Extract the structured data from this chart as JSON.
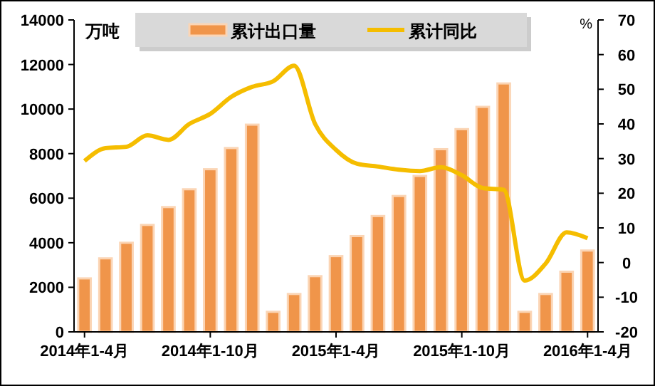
{
  "chart_data": {
    "type": "bar",
    "categories": [
      "2014年1-4月",
      null,
      null,
      null,
      null,
      null,
      "2014年1-10月",
      null,
      null,
      null,
      null,
      null,
      "2015年1-4月",
      null,
      null,
      null,
      null,
      null,
      "2015年1-10月",
      null,
      null,
      null,
      null,
      null,
      "2016年1-4月"
    ],
    "ylabel": "万吨",
    "y2label": "%",
    "ylim": [
      0,
      14000
    ],
    "yticks": [
      0,
      2000,
      4000,
      6000,
      8000,
      10000,
      12000,
      14000
    ],
    "y2lim": [
      -20,
      70
    ],
    "y2ticks": [
      -20,
      -10,
      0,
      10,
      20,
      30,
      40,
      50,
      60,
      70
    ],
    "series": [
      {
        "name": "累计出口量",
        "color": "#f0954a",
        "values": [
          2400,
          3300,
          4000,
          4800,
          5600,
          6400,
          7300,
          8250,
          9300,
          900,
          1700,
          2500,
          3400,
          4300,
          5200,
          6100,
          7000,
          8200,
          9100,
          10100,
          11150,
          900,
          1700,
          2700,
          3650
        ]
      },
      {
        "name": "累计同比",
        "type": "line",
        "axis": "y2",
        "color": "#f5bd00",
        "values": [
          29.3,
          33,
          33.4,
          36.7,
          35.4,
          40,
          42.9,
          47.8,
          50.7,
          52.3,
          56.8,
          40,
          32.5,
          28.5,
          27.7,
          26.8,
          26.4,
          27.5,
          25.2,
          21.5,
          21,
          -5.2,
          -0.3,
          8.7,
          7
        ]
      }
    ],
    "legend": "top",
    "grid": false
  }
}
